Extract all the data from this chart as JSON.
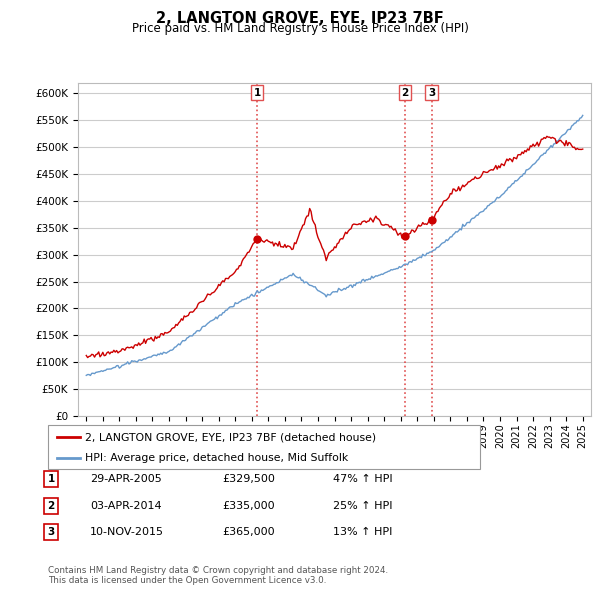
{
  "title": "2, LANGTON GROVE, EYE, IP23 7BF",
  "subtitle": "Price paid vs. HM Land Registry's House Price Index (HPI)",
  "ylabel_ticks": [
    "£0",
    "£50K",
    "£100K",
    "£150K",
    "£200K",
    "£250K",
    "£300K",
    "£350K",
    "£400K",
    "£450K",
    "£500K",
    "£550K",
    "£600K"
  ],
  "ylim": [
    0,
    620000
  ],
  "xlim_start": 1994.5,
  "xlim_end": 2025.5,
  "sale_dates": [
    2005.33,
    2014.25,
    2015.87
  ],
  "sale_prices": [
    329500,
    335000,
    365000
  ],
  "sale_labels": [
    "1",
    "2",
    "3"
  ],
  "vline_color": "#e05050",
  "vline_style": ":",
  "sale_marker_color": "#cc0000",
  "hpi_line_color": "#6699cc",
  "price_line_color": "#cc0000",
  "legend_label_price": "2, LANGTON GROVE, EYE, IP23 7BF (detached house)",
  "legend_label_hpi": "HPI: Average price, detached house, Mid Suffolk",
  "table_rows": [
    [
      "1",
      "29-APR-2005",
      "£329,500",
      "47% ↑ HPI"
    ],
    [
      "2",
      "03-APR-2014",
      "£335,000",
      "25% ↑ HPI"
    ],
    [
      "3",
      "10-NOV-2015",
      "£365,000",
      "13% ↑ HPI"
    ]
  ],
  "footnote": "Contains HM Land Registry data © Crown copyright and database right 2024.\nThis data is licensed under the Open Government Licence v3.0.",
  "background_color": "#ffffff",
  "grid_color": "#cccccc"
}
